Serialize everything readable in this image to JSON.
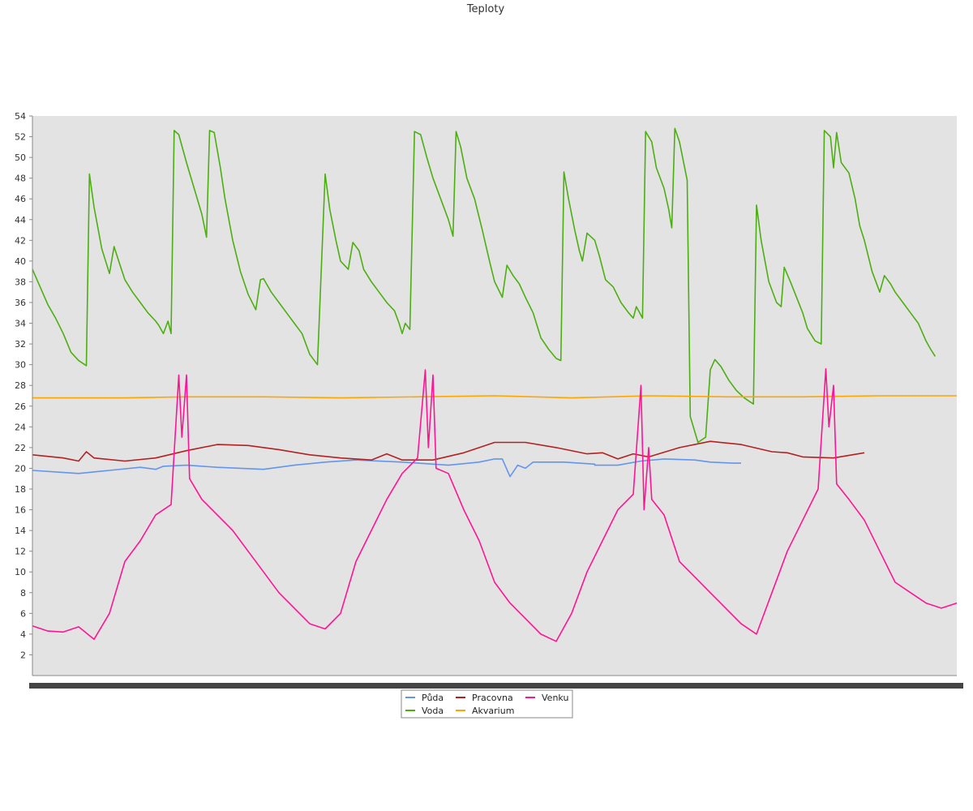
{
  "chart_data": {
    "type": "line",
    "title": "Teploty",
    "xlabel": "",
    "ylabel": "",
    "ylim": [
      0,
      54
    ],
    "yticks": [
      2,
      4,
      6,
      8,
      10,
      12,
      14,
      16,
      18,
      20,
      22,
      24,
      26,
      28,
      30,
      32,
      34,
      36,
      38,
      40,
      42,
      44,
      46,
      48,
      50,
      52,
      54
    ],
    "xlim": [
      0,
      600
    ],
    "grid": false,
    "legend": "bottom-center",
    "series": [
      {
        "name": "Půda",
        "color": "#6495ed",
        "points": [
          [
            0,
            19.8
          ],
          [
            20,
            19.6
          ],
          [
            30,
            19.5
          ],
          [
            50,
            19.8
          ],
          [
            70,
            20.1
          ],
          [
            80,
            19.9
          ],
          [
            85,
            20.2
          ],
          [
            100,
            20.3
          ],
          [
            120,
            20.1
          ],
          [
            150,
            19.9
          ],
          [
            170,
            20.3
          ],
          [
            190,
            20.6
          ],
          [
            210,
            20.8
          ],
          [
            240,
            20.6
          ],
          [
            260,
            20.4
          ],
          [
            270,
            20.3
          ],
          [
            290,
            20.6
          ],
          [
            300,
            20.9
          ],
          [
            305,
            20.9
          ],
          [
            310,
            19.2
          ],
          [
            315,
            20.3
          ],
          [
            320,
            20.0
          ],
          [
            325,
            20.6
          ],
          [
            345,
            20.6
          ],
          [
            365,
            20.4
          ],
          [
            380,
            20.3
          ],
          [
            395,
            20.7
          ],
          [
            410,
            20.9
          ],
          [
            430,
            20.8
          ],
          [
            440,
            20.6
          ],
          [
            455,
            20.5
          ],
          [
            460,
            20.5
          ],
          [
            365,
            20.3
          ]
        ]
      },
      {
        "name": "Voda",
        "color": "#4caf10",
        "points": [
          [
            0,
            39.2
          ],
          [
            5,
            37.5
          ],
          [
            10,
            35.8
          ],
          [
            15,
            34.5
          ],
          [
            20,
            33.0
          ],
          [
            25,
            31.2
          ],
          [
            30,
            30.4
          ],
          [
            35,
            29.9
          ],
          [
            37,
            48.4
          ],
          [
            40,
            45.2
          ],
          [
            45,
            41.2
          ],
          [
            50,
            38.8
          ],
          [
            53,
            41.4
          ],
          [
            56,
            40.0
          ],
          [
            60,
            38.2
          ],
          [
            65,
            37.0
          ],
          [
            70,
            36.0
          ],
          [
            75,
            35.0
          ],
          [
            80,
            34.2
          ],
          [
            82,
            33.8
          ],
          [
            85,
            33.0
          ],
          [
            88,
            34.2
          ],
          [
            90,
            33.0
          ],
          [
            92,
            52.6
          ],
          [
            95,
            52.2
          ],
          [
            100,
            49.5
          ],
          [
            105,
            47.0
          ],
          [
            110,
            44.5
          ],
          [
            113,
            42.3
          ],
          [
            115,
            52.6
          ],
          [
            118,
            52.4
          ],
          [
            122,
            49.0
          ],
          [
            125,
            46.0
          ],
          [
            130,
            42.0
          ],
          [
            135,
            39.0
          ],
          [
            140,
            36.8
          ],
          [
            145,
            35.3
          ],
          [
            148,
            38.2
          ],
          [
            150,
            38.3
          ],
          [
            155,
            37.0
          ],
          [
            160,
            36.0
          ],
          [
            165,
            35.0
          ],
          [
            170,
            34.0
          ],
          [
            175,
            33.0
          ],
          [
            180,
            31.0
          ],
          [
            185,
            30.0
          ],
          [
            190,
            48.4
          ],
          [
            193,
            45.0
          ],
          [
            197,
            42.0
          ],
          [
            200,
            40.0
          ],
          [
            205,
            39.2
          ],
          [
            208,
            41.8
          ],
          [
            212,
            41.0
          ],
          [
            215,
            39.2
          ],
          [
            220,
            38.0
          ],
          [
            225,
            37.0
          ],
          [
            230,
            36.0
          ],
          [
            235,
            35.2
          ],
          [
            238,
            34.0
          ],
          [
            240,
            33.0
          ],
          [
            242,
            34.0
          ],
          [
            245,
            33.4
          ],
          [
            248,
            52.5
          ],
          [
            252,
            52.2
          ],
          [
            256,
            50.0
          ],
          [
            260,
            48.0
          ],
          [
            265,
            46.0
          ],
          [
            270,
            44.0
          ],
          [
            273,
            42.4
          ],
          [
            275,
            52.5
          ],
          [
            278,
            51.0
          ],
          [
            282,
            48.0
          ],
          [
            287,
            46.0
          ],
          [
            292,
            43.0
          ],
          [
            297,
            39.8
          ],
          [
            300,
            38.0
          ],
          [
            305,
            36.5
          ],
          [
            308,
            39.6
          ],
          [
            312,
            38.6
          ],
          [
            316,
            37.8
          ],
          [
            320,
            36.5
          ],
          [
            325,
            35.0
          ],
          [
            330,
            32.6
          ],
          [
            335,
            31.5
          ],
          [
            340,
            30.6
          ],
          [
            343,
            30.4
          ],
          [
            345,
            48.6
          ],
          [
            348,
            46.0
          ],
          [
            352,
            43.0
          ],
          [
            355,
            41.0
          ],
          [
            357,
            40.0
          ],
          [
            360,
            42.7
          ],
          [
            365,
            42.0
          ],
          [
            368,
            40.5
          ],
          [
            372,
            38.2
          ],
          [
            377,
            37.5
          ],
          [
            382,
            36.0
          ],
          [
            387,
            35.0
          ],
          [
            390,
            34.5
          ],
          [
            392,
            35.6
          ],
          [
            396,
            34.5
          ],
          [
            398,
            52.5
          ],
          [
            402,
            51.5
          ],
          [
            405,
            49.0
          ],
          [
            410,
            47.0
          ],
          [
            413,
            45.0
          ],
          [
            415,
            43.2
          ],
          [
            417,
            52.8
          ],
          [
            420,
            51.5
          ],
          [
            425,
            47.8
          ],
          [
            427,
            25.0
          ],
          [
            432,
            22.5
          ],
          [
            437,
            23.0
          ],
          [
            440,
            29.5
          ],
          [
            443,
            30.5
          ],
          [
            447,
            29.8
          ],
          [
            452,
            28.5
          ],
          [
            457,
            27.5
          ],
          [
            462,
            26.8
          ],
          [
            465,
            26.5
          ],
          [
            468,
            26.2
          ],
          [
            470,
            45.4
          ],
          [
            473,
            42.0
          ],
          [
            478,
            38.0
          ],
          [
            483,
            36.0
          ],
          [
            486,
            35.6
          ],
          [
            488,
            39.4
          ],
          [
            492,
            38.0
          ],
          [
            496,
            36.5
          ],
          [
            500,
            35.0
          ],
          [
            503,
            33.5
          ],
          [
            508,
            32.3
          ],
          [
            512,
            32.0
          ],
          [
            514,
            52.6
          ],
          [
            518,
            52.0
          ],
          [
            520,
            49.0
          ],
          [
            522,
            52.4
          ],
          [
            525,
            49.5
          ],
          [
            530,
            48.5
          ],
          [
            534,
            46.0
          ],
          [
            537,
            43.4
          ],
          [
            540,
            42.0
          ],
          [
            545,
            39.0
          ],
          [
            550,
            37.0
          ],
          [
            553,
            38.6
          ],
          [
            557,
            37.8
          ],
          [
            560,
            37.0
          ],
          [
            565,
            36.0
          ],
          [
            570,
            35.0
          ],
          [
            575,
            34.0
          ],
          [
            580,
            32.3
          ],
          [
            583,
            31.5
          ],
          [
            586,
            30.8
          ]
        ]
      },
      {
        "name": "Pracovna",
        "color": "#b22222",
        "points": [
          [
            0,
            21.3
          ],
          [
            20,
            21.0
          ],
          [
            30,
            20.7
          ],
          [
            35,
            21.6
          ],
          [
            40,
            21.0
          ],
          [
            60,
            20.7
          ],
          [
            80,
            21.0
          ],
          [
            100,
            21.7
          ],
          [
            120,
            22.3
          ],
          [
            140,
            22.2
          ],
          [
            160,
            21.8
          ],
          [
            180,
            21.3
          ],
          [
            200,
            21.0
          ],
          [
            220,
            20.8
          ],
          [
            230,
            21.4
          ],
          [
            240,
            20.8
          ],
          [
            260,
            20.8
          ],
          [
            280,
            21.5
          ],
          [
            300,
            22.5
          ],
          [
            320,
            22.5
          ],
          [
            340,
            22.0
          ],
          [
            360,
            21.4
          ],
          [
            370,
            21.5
          ],
          [
            380,
            20.9
          ],
          [
            390,
            21.4
          ],
          [
            400,
            21.1
          ],
          [
            420,
            22.0
          ],
          [
            440,
            22.6
          ],
          [
            460,
            22.3
          ],
          [
            480,
            21.6
          ],
          [
            490,
            21.5
          ],
          [
            500,
            21.1
          ],
          [
            520,
            21.0
          ],
          [
            540,
            21.5
          ]
        ]
      },
      {
        "name": "Akvarium",
        "color": "#ffa500",
        "points": [
          [
            0,
            26.8
          ],
          [
            60,
            26.8
          ],
          [
            100,
            26.9
          ],
          [
            150,
            26.9
          ],
          [
            200,
            26.8
          ],
          [
            250,
            26.9
          ],
          [
            300,
            27.0
          ],
          [
            350,
            26.8
          ],
          [
            400,
            27.0
          ],
          [
            450,
            26.9
          ],
          [
            500,
            26.9
          ],
          [
            550,
            27.0
          ],
          [
            600,
            27.0
          ]
        ]
      },
      {
        "name": "Venku",
        "color": "#ff1493",
        "points": [
          [
            0,
            4.8
          ],
          [
            10,
            4.3
          ],
          [
            20,
            4.2
          ],
          [
            30,
            4.7
          ],
          [
            40,
            3.5
          ],
          [
            50,
            6.0
          ],
          [
            60,
            11.0
          ],
          [
            70,
            13.0
          ],
          [
            80,
            15.5
          ],
          [
            90,
            16.5
          ],
          [
            95,
            29.0
          ],
          [
            97,
            23.0
          ],
          [
            100,
            29.0
          ],
          [
            102,
            19.0
          ],
          [
            110,
            17.0
          ],
          [
            120,
            15.5
          ],
          [
            130,
            14.0
          ],
          [
            140,
            12.0
          ],
          [
            150,
            10.0
          ],
          [
            160,
            8.0
          ],
          [
            170,
            6.5
          ],
          [
            180,
            5.0
          ],
          [
            190,
            4.5
          ],
          [
            200,
            6.0
          ],
          [
            210,
            11.0
          ],
          [
            220,
            14.0
          ],
          [
            230,
            17.0
          ],
          [
            240,
            19.5
          ],
          [
            250,
            21.0
          ],
          [
            255,
            29.5
          ],
          [
            257,
            22.0
          ],
          [
            260,
            29.0
          ],
          [
            262,
            20.0
          ],
          [
            270,
            19.5
          ],
          [
            280,
            16.0
          ],
          [
            290,
            13.0
          ],
          [
            300,
            9.0
          ],
          [
            310,
            7.0
          ],
          [
            320,
            5.5
          ],
          [
            330,
            4.0
          ],
          [
            340,
            3.3
          ],
          [
            350,
            6.0
          ],
          [
            360,
            10.0
          ],
          [
            370,
            13.0
          ],
          [
            380,
            16.0
          ],
          [
            390,
            17.5
          ],
          [
            395,
            28.0
          ],
          [
            397,
            16.0
          ],
          [
            400,
            22.0
          ],
          [
            402,
            17.0
          ],
          [
            410,
            15.5
          ],
          [
            420,
            11.0
          ],
          [
            430,
            9.5
          ],
          [
            440,
            8.0
          ],
          [
            450,
            6.5
          ],
          [
            460,
            5.0
          ],
          [
            470,
            4.0
          ],
          [
            480,
            8.0
          ],
          [
            490,
            12.0
          ],
          [
            500,
            15.0
          ],
          [
            510,
            18.0
          ],
          [
            515,
            29.6
          ],
          [
            517,
            24.0
          ],
          [
            520,
            28.0
          ],
          [
            522,
            18.5
          ],
          [
            530,
            17.0
          ],
          [
            540,
            15.0
          ],
          [
            550,
            12.0
          ],
          [
            560,
            9.0
          ],
          [
            570,
            8.0
          ],
          [
            580,
            7.0
          ],
          [
            590,
            6.5
          ],
          [
            600,
            7.0
          ]
        ]
      }
    ],
    "legend_entries": [
      {
        "name": "Půda",
        "color": "#6495ed"
      },
      {
        "name": "Pracovna",
        "color": "#b22222"
      },
      {
        "name": "Venku",
        "color": "#ff1493"
      },
      {
        "name": "Voda",
        "color": "#4caf10"
      },
      {
        "name": "Akvarium",
        "color": "#ffa500"
      }
    ]
  }
}
